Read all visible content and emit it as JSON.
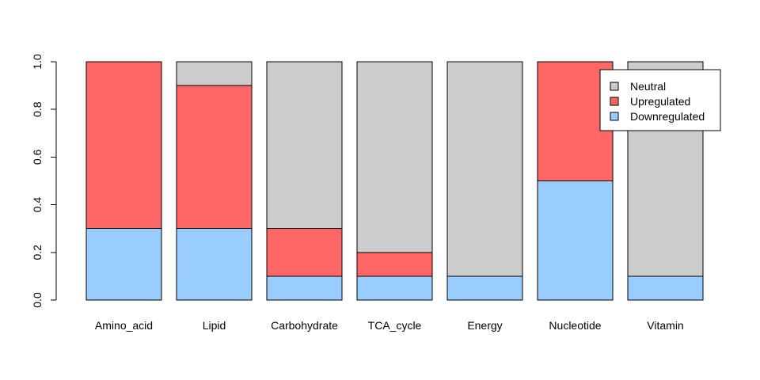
{
  "chart_data": {
    "type": "bar",
    "stacked": true,
    "categories": [
      "Amino_acid",
      "Lipid",
      "Carbohydrate",
      "TCA_cycle",
      "Energy",
      "Nucleotide",
      "Vitamin"
    ],
    "series": [
      {
        "name": "Downregulated",
        "color": "#99CCFF",
        "values": [
          0.3,
          0.3,
          0.1,
          0.1,
          0.1,
          0.5,
          0.1
        ]
      },
      {
        "name": "Upregulated",
        "color": "#FF6666",
        "values": [
          0.7,
          0.6,
          0.2,
          0.1,
          0.0,
          0.5,
          0.0
        ]
      },
      {
        "name": "Neutral",
        "color": "#CCCCCC",
        "values": [
          0.0,
          0.1,
          0.7,
          0.8,
          0.9,
          0.0,
          0.9
        ]
      }
    ],
    "legend_order": [
      "Neutral",
      "Upregulated",
      "Downregulated"
    ],
    "legend_position": "top-right",
    "yticks": [
      "0.0",
      "0.2",
      "0.4",
      "0.6",
      "0.8",
      "1.0"
    ],
    "ylim": [
      0,
      1
    ],
    "title": "",
    "xlabel": "",
    "ylabel": "",
    "grid": false
  }
}
